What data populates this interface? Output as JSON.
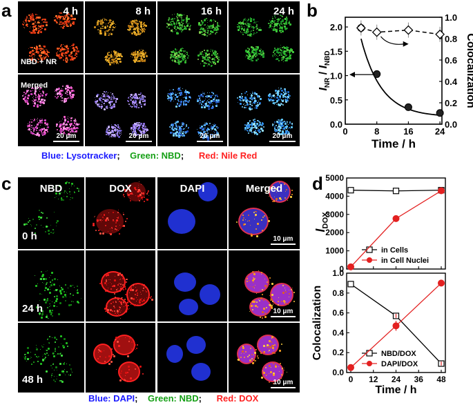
{
  "panel_a": {
    "label": "a",
    "times": [
      "4 h",
      "8 h",
      "16 h",
      "24 h"
    ],
    "row1_label": "NBD + NR",
    "row2_label": "Merged",
    "scale_bar": "20 μm",
    "legend": {
      "blue": "Blue: Lysotracker",
      "green": "Green: NBD",
      "red": "Red: Nile Red",
      "sep": ";"
    },
    "colors": {
      "blue": "#1a1aff",
      "green": "#16a016",
      "red": "#ff2020"
    }
  },
  "panel_c": {
    "label": "c",
    "columns": [
      "NBD",
      "DOX",
      "DAPI",
      "Merged"
    ],
    "rows": [
      "0 h",
      "24 h",
      "48 h"
    ],
    "scale_bar": "10 μm",
    "legend": {
      "blue": "Blue: DAPI",
      "green": "Green: NBD",
      "red": "Red: DOX",
      "sep": ";"
    }
  },
  "panel_b": {
    "label": "b"
  },
  "panel_d": {
    "label": "d"
  },
  "chart_data": [
    {
      "panel": "b",
      "type": "scatter",
      "xlabel": "Time / h",
      "ylabel_left": "I_NR / I_NBD",
      "ylabel_right": "Colocalization",
      "x_ticks": [
        0,
        8,
        16,
        24
      ],
      "xlim": [
        0,
        24.5
      ],
      "ylim_left": [
        0,
        2.2
      ],
      "ylim_right": [
        0,
        1.0
      ],
      "y_ticks_left": [
        "0.0",
        "0.5",
        "1.0",
        "1.5",
        "2.0"
      ],
      "y_ticks_right": [
        "0.0",
        "0.2",
        "0.4",
        "0.6",
        "0.8",
        "1.0"
      ],
      "series": [
        {
          "axis": "left",
          "marker": "filled-circle",
          "line": "solid-fit",
          "x": [
            4,
            8,
            16,
            24
          ],
          "y": [
            1.98,
            1.03,
            0.35,
            0.23
          ]
        },
        {
          "axis": "right",
          "marker": "open-diamond",
          "line": "dashed",
          "x": [
            4,
            8,
            16,
            24
          ],
          "y": [
            0.9,
            0.86,
            0.88,
            0.84
          ]
        }
      ]
    },
    {
      "panel": "d-top",
      "type": "line",
      "ylabel": "I_DOX",
      "x": [
        0,
        24,
        48
      ],
      "x_ticks": [
        "0",
        "12",
        "24",
        "36",
        "48"
      ],
      "ylim": [
        0,
        5000
      ],
      "y_ticks": [
        "0",
        "1000",
        "2000",
        "3000",
        "4000",
        "5000"
      ],
      "series": [
        {
          "name": "in Cells",
          "marker": "open-square",
          "color": "#000000",
          "values": [
            4330,
            4290,
            4330
          ]
        },
        {
          "name": "in Cell Nuclei",
          "marker": "filled-circle",
          "color": "#e32020",
          "values": [
            120,
            2770,
            4300
          ]
        }
      ]
    },
    {
      "panel": "d-bottom",
      "type": "line",
      "xlabel": "Time / h",
      "ylabel": "Colocalization",
      "x": [
        0,
        24,
        48
      ],
      "x_ticks": [
        "0",
        "12",
        "24",
        "36",
        "48"
      ],
      "ylim": [
        0,
        1.0
      ],
      "y_ticks": [
        "0.0",
        "0.2",
        "0.4",
        "0.6",
        "0.8",
        "1.0"
      ],
      "series": [
        {
          "name": "NBD/DOX",
          "marker": "open-square",
          "color": "#000000",
          "values": [
            0.89,
            0.57,
            0.09
          ]
        },
        {
          "name": "DAPI/DOX",
          "marker": "filled-circle",
          "color": "#e32020",
          "values": [
            0.05,
            0.47,
            0.9
          ]
        }
      ]
    }
  ]
}
